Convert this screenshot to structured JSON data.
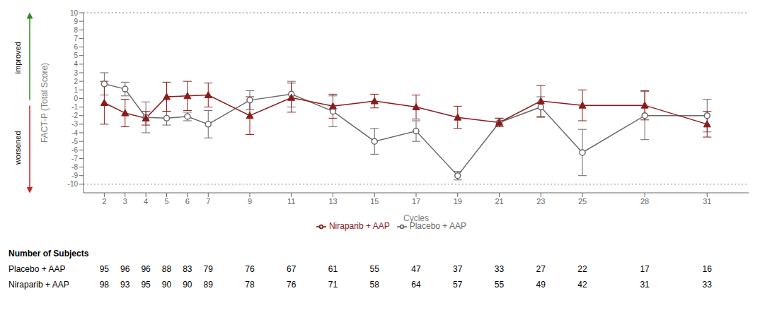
{
  "chart_data": {
    "type": "line",
    "xlabel": "Cycles",
    "ylabel": "FACT-P (Total Score)",
    "x": [
      2,
      3,
      4,
      5,
      6,
      7,
      9,
      11,
      13,
      15,
      17,
      19,
      21,
      23,
      25,
      28,
      31
    ],
    "series": [
      {
        "name": "Placebo + AAP",
        "color": "#696969",
        "marker": "circle",
        "values": [
          1.7,
          1.1,
          -2.2,
          -2.3,
          -2.1,
          -3.0,
          -0.2,
          0.5,
          -1.5,
          -5.0,
          -3.8,
          -9.0,
          -2.8,
          -1.0,
          -6.3,
          -2.0,
          -2.0
        ],
        "error_low": [
          1.3,
          0.8,
          1.8,
          0.8,
          0.5,
          1.6,
          1.1,
          1.5,
          1.8,
          1.5,
          1.2,
          0.5,
          0.5,
          1.2,
          2.7,
          2.8,
          1.9
        ],
        "error_high": [
          1.3,
          0.8,
          1.8,
          0.8,
          0.5,
          1.6,
          1.1,
          1.5,
          1.8,
          1.5,
          1.2,
          0.5,
          0.5,
          1.2,
          2.7,
          2.8,
          1.9
        ]
      },
      {
        "name": "Niraparib + AAP",
        "color": "#8B1A1A",
        "marker": "triangle",
        "values": [
          -0.5,
          -1.7,
          -2.3,
          0.2,
          0.3,
          0.4,
          -2.0,
          0.1,
          -0.9,
          -0.3,
          -1.0,
          -2.2,
          -2.8,
          -0.3,
          -0.8,
          -0.8,
          -3.0
        ],
        "error_low": [
          2.5,
          1.6,
          0.8,
          1.7,
          1.7,
          1.4,
          2.2,
          1.7,
          1.4,
          0.8,
          1.4,
          1.3,
          0.5,
          1.8,
          1.8,
          1.7,
          1.5
        ],
        "error_high": [
          2.5,
          1.6,
          0.8,
          1.7,
          1.7,
          1.4,
          2.2,
          1.7,
          1.4,
          0.8,
          1.4,
          1.3,
          0.5,
          1.8,
          1.8,
          1.7,
          1.5
        ]
      }
    ],
    "xlim": [
      1,
      33
    ],
    "xticks": [
      2,
      3,
      4,
      5,
      6,
      7,
      9,
      11,
      13,
      15,
      17,
      19,
      21,
      23,
      25,
      28,
      31
    ],
    "ylim": [
      -11,
      10
    ],
    "yticks": [
      -10,
      -9,
      -8,
      -7,
      -6,
      -5,
      -4,
      -3,
      -2,
      -1,
      0,
      1,
      2,
      3,
      4,
      5,
      6,
      7,
      8,
      9,
      10
    ],
    "reference_lines": [
      -10,
      10
    ],
    "annotations": [
      {
        "text": "improved",
        "color": "#2E8B22"
      },
      {
        "text": "worsened",
        "color": "#CC2222"
      }
    ],
    "table": {
      "title": "Number of Subjects",
      "rows": [
        {
          "name": "Placebo + AAP",
          "values": [
            95,
            96,
            96,
            88,
            83,
            79,
            76,
            67,
            61,
            55,
            47,
            37,
            33,
            27,
            22,
            17,
            16
          ]
        },
        {
          "name": "Niraparib + AAP",
          "values": [
            98,
            93,
            95,
            90,
            90,
            89,
            78,
            76,
            71,
            58,
            64,
            57,
            55,
            49,
            42,
            31,
            33
          ]
        }
      ]
    },
    "grid": false,
    "legend": "bottom"
  }
}
